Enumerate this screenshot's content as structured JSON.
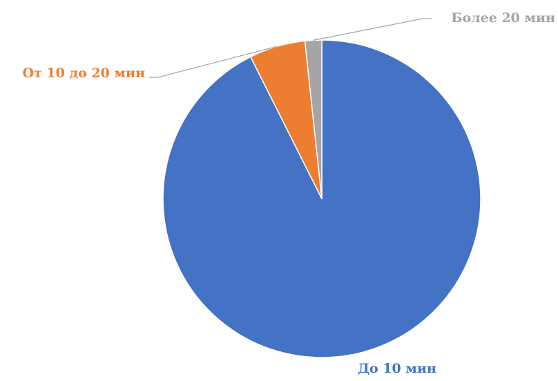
{
  "chart_data": {
    "type": "pie",
    "title": "",
    "categories": [
      "До 10 мин",
      "От 10 до 20 мин",
      "Более 20 мин"
    ],
    "values": [
      92.6,
      5.7,
      1.7
    ],
    "colors": [
      "#4472C4",
      "#ED7D31",
      "#A5A5A5"
    ],
    "start_angle": "12 o'clock",
    "direction": "clockwise",
    "legend": "none",
    "data_labels": "category names with leader lines"
  }
}
